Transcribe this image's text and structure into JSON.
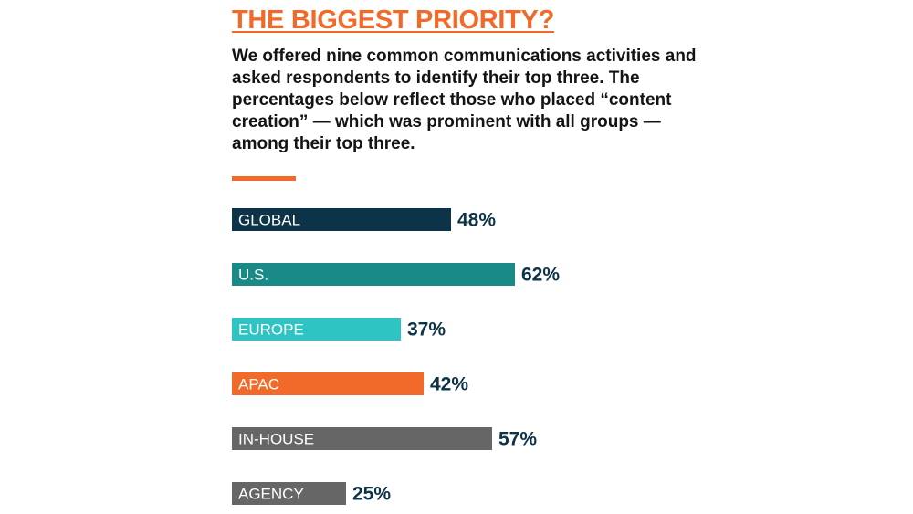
{
  "colors": {
    "title": "#f26a2a",
    "accent_rule": "#f26a2a",
    "value_text": "#0d3349"
  },
  "chart_data": {
    "type": "bar",
    "orientation": "horizontal",
    "title": "THE BIGGEST PRIORITY?",
    "subtitle": "We offered nine common communications activities and asked respondents to identify their top three. The percentages below reflect those who placed “content creation” — which was prominent with all groups — among their top three.",
    "categories": [
      "GLOBAL",
      "U.S.",
      "EUROPE",
      "APAC",
      "IN-HOUSE",
      "AGENCY"
    ],
    "values": [
      48,
      62,
      37,
      42,
      57,
      25
    ],
    "value_labels": [
      "48%",
      "62%",
      "37%",
      "42%",
      "57%",
      "25%"
    ],
    "bar_colors": [
      "#0d3349",
      "#1a8a86",
      "#2ec4c4",
      "#f26a2a",
      "#666666",
      "#666666"
    ],
    "unit": "%",
    "xlim": [
      0,
      100
    ],
    "grid": false,
    "legend": "none"
  }
}
